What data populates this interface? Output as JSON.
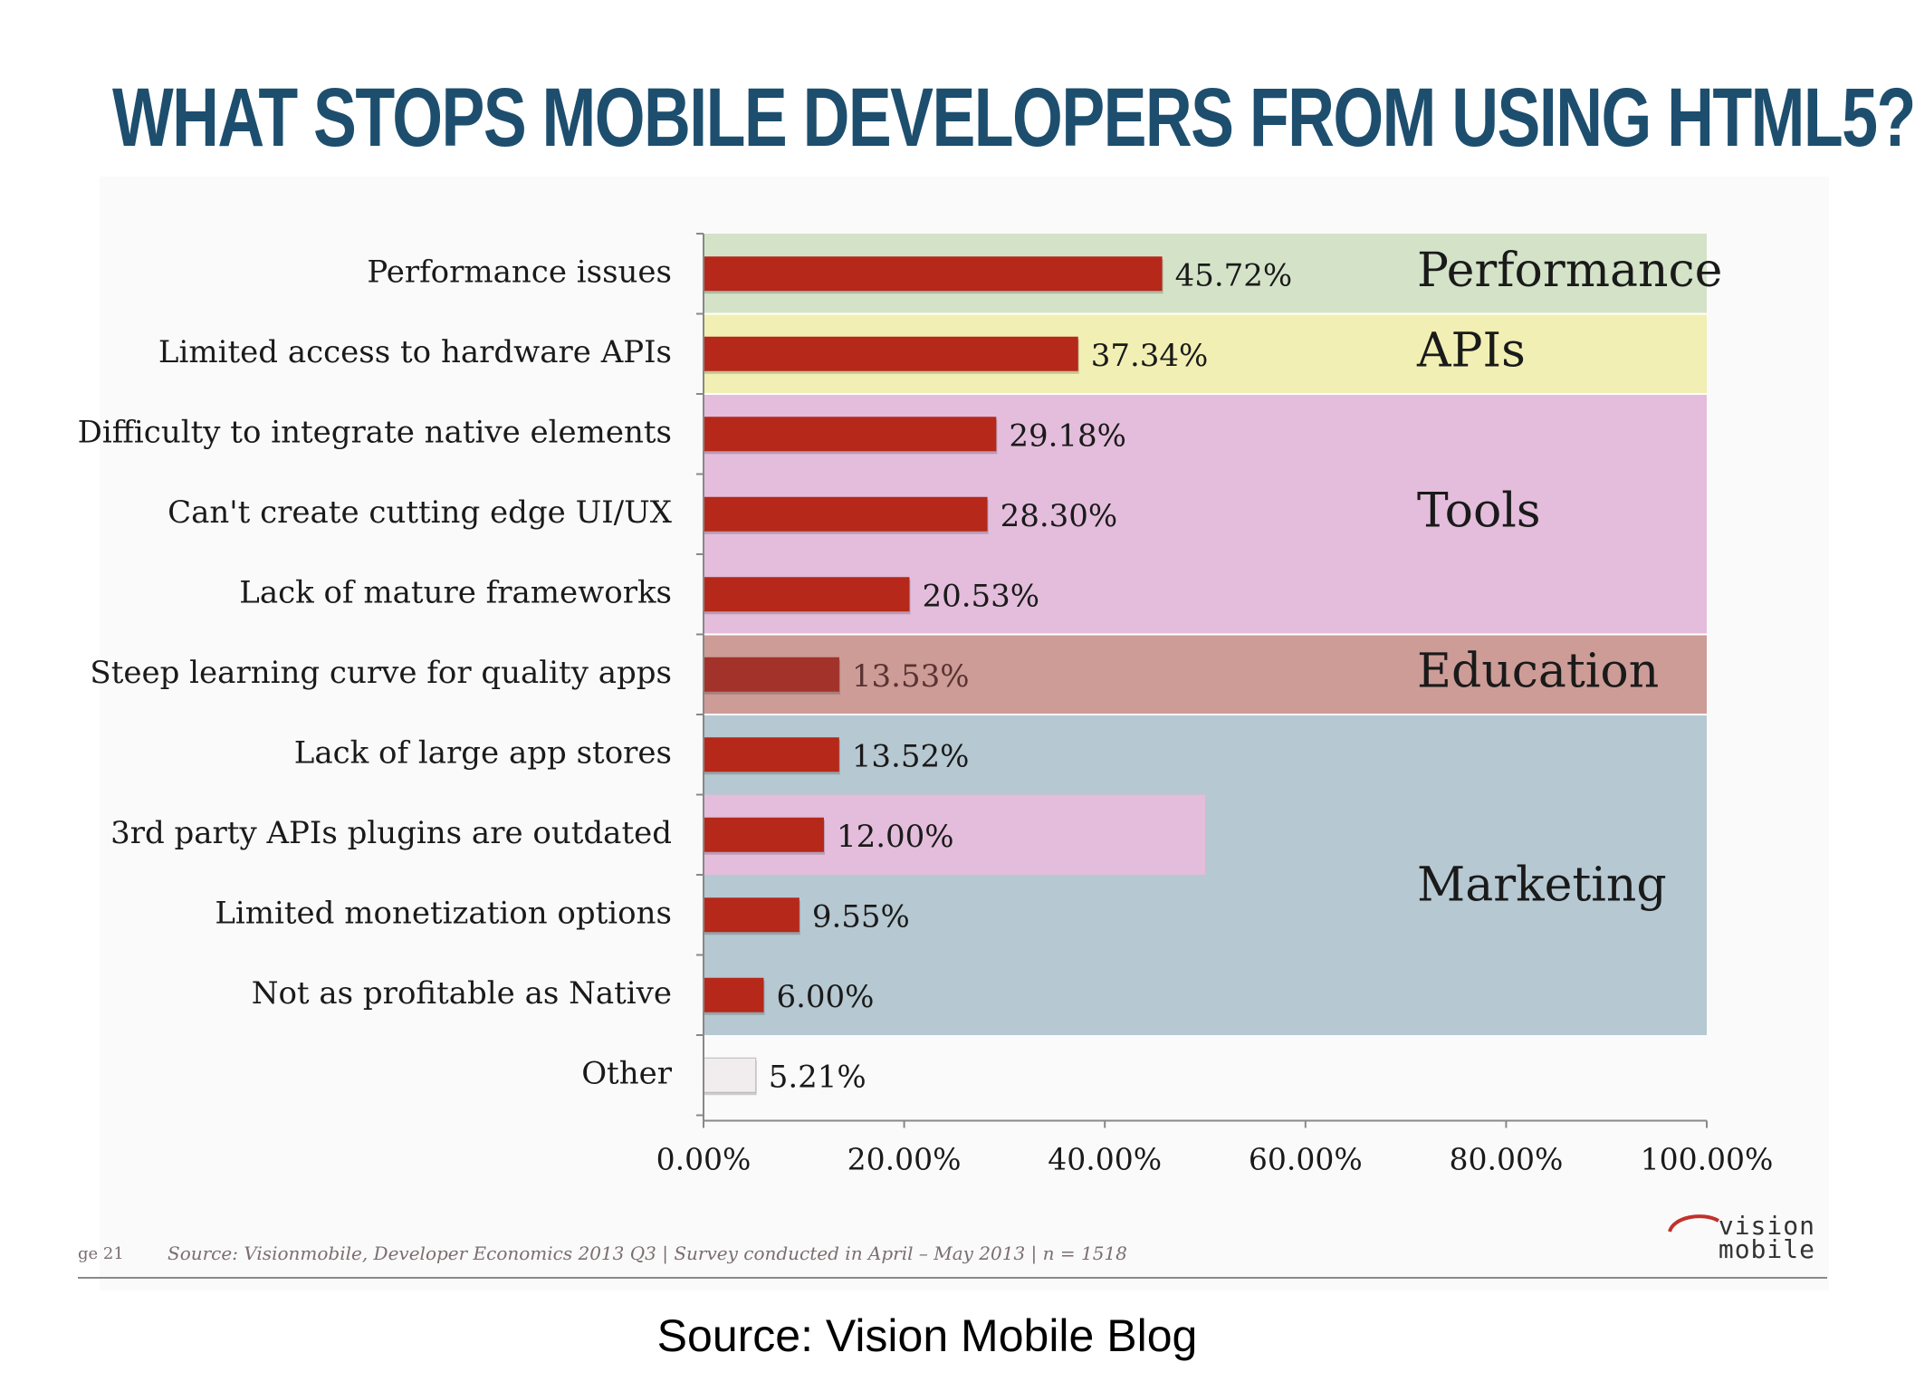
{
  "title": "WHAT STOPS MOBILE DEVELOPERS FROM USING HTML5?",
  "chart_data": {
    "type": "bar",
    "orientation": "horizontal",
    "title": "WHAT STOPS MOBILE DEVELOPERS FROM USING HTML5?",
    "categories": [
      "Performance issues",
      "Limited access to hardware APIs",
      "Difficulty to integrate native elements",
      "Can't create cutting edge UI/UX",
      "Lack of mature frameworks",
      "Steep learning curve for quality apps",
      "Lack of large app stores",
      "3rd party APIs plugins are outdated",
      "Limited monetization options",
      "Not as profitable as Native",
      "Other"
    ],
    "values": [
      45.72,
      37.34,
      29.18,
      28.3,
      20.53,
      13.53,
      13.52,
      12.0,
      9.55,
      6.0,
      5.21
    ],
    "value_labels": [
      "45.72%",
      "37.34%",
      "29.18%",
      "28.30%",
      "20.53%",
      "13.53%",
      "13.52%",
      "12.00%",
      "9.55%",
      "6.00%",
      "5.21%"
    ],
    "xlim": [
      0,
      100
    ],
    "x_ticks": [
      "0.00%",
      "20.00%",
      "40.00%",
      "60.00%",
      "80.00%",
      "100.00%"
    ],
    "x_tick_values": [
      0,
      20,
      40,
      60,
      80,
      100
    ],
    "xlabel": "",
    "ylabel": "",
    "grid": false,
    "legend": "none",
    "groups": [
      {
        "name": "Performance",
        "rows": [
          0
        ],
        "x_extent": [
          0,
          100
        ],
        "color": "#d4e3c8"
      },
      {
        "name": "APIs",
        "rows": [
          1
        ],
        "x_extent": [
          0,
          100
        ],
        "color": "#f1efb3"
      },
      {
        "name": "Tools",
        "rows": [
          2,
          3,
          4
        ],
        "x_extent": [
          0,
          100
        ],
        "color": "#e3bddb"
      },
      {
        "name": "Education",
        "rows": [
          5
        ],
        "x_extent": [
          0,
          100
        ],
        "color": "#cd9c97"
      },
      {
        "name": "Marketing",
        "rows": [
          6,
          8,
          9
        ],
        "x_extent": [
          0,
          100
        ],
        "color": "#b6c8d1"
      },
      {
        "name": "",
        "rows": [
          7
        ],
        "x_extent": [
          0,
          50
        ],
        "color": "#e3bddb"
      }
    ],
    "bar_colors": {
      "default": "#b5281a",
      "Steep learning curve for quality apps": "#a3332a",
      "Other": "#f1ecee"
    }
  },
  "footer": {
    "page": "ge 21",
    "source_note": "Source: Visionmobile, Developer Economics 2013 Q3 | Survey conducted in April – May 2013 | n = 1518",
    "logo_line1": "vision",
    "logo_line2": "mobile"
  },
  "caption": "Source: Vision Mobile Blog"
}
